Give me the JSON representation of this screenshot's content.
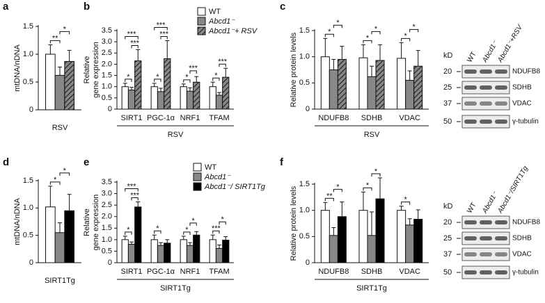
{
  "chart_data": [
    {
      "panel": "a",
      "type": "bar",
      "ylabel": [
        "mtDNA/nDNA"
      ],
      "xlabel": "RSV",
      "categories": [
        null
      ],
      "legend": false,
      "series": [
        {
          "name": "WT",
          "color": "#ffffff",
          "values": [
            1.0
          ],
          "errors": [
            0.17
          ]
        },
        {
          "name": "Abcd1⁻",
          "color": "#888888",
          "values": [
            0.62
          ],
          "errors": [
            0.15
          ]
        },
        {
          "name": "Abcd1⁻+ RSV",
          "color": "#888888",
          "hatch": true,
          "values": [
            0.87
          ],
          "errors": [
            0.2
          ]
        }
      ],
      "ylim": [
        0,
        1.5
      ],
      "yticks": [
        0,
        0.5,
        {
          "value": 1,
          "label": "1.0"
        },
        1.5
      ],
      "comparisons": [
        {
          "text": "**",
          "category": 0,
          "from": 0,
          "to": 1
        },
        {
          "text": "*",
          "category": 0,
          "from": 1,
          "to": 2
        }
      ]
    },
    {
      "panel": "b",
      "type": "bar",
      "ylabel": [
        "Relative",
        "gene expression"
      ],
      "xlabel": "RSV",
      "categories": [
        "SIRT1",
        "PGC-1α",
        "NRF1",
        "TFAM"
      ],
      "legend": true,
      "series": [
        {
          "name": "WT",
          "color": "#ffffff",
          "values": [
            1,
            1,
            1,
            1
          ],
          "errors": [
            0.15,
            0.15,
            0.12,
            0.2
          ]
        },
        {
          "name": "Abcd1⁻",
          "color": "#888888",
          "values": [
            0.85,
            0.78,
            0.8,
            0.62
          ],
          "errors": [
            0.12,
            0.15,
            0.15,
            0.12
          ]
        },
        {
          "name": "Abcd1⁻+ RSV",
          "color": "#888888",
          "hatch": true,
          "values": [
            2.15,
            2.25,
            1.2,
            1.42
          ],
          "errors": [
            0.5,
            0.8,
            0.25,
            0.4
          ]
        }
      ],
      "ylim": [
        0,
        3.5
      ],
      "yticks": [
        0,
        0.5,
        {
          "value": 1,
          "label": "1.0"
        },
        1.5,
        {
          "value": 2,
          "label": "2.0"
        },
        2.5,
        {
          "value": 3,
          "label": "3.0"
        },
        3.5
      ],
      "comparisons": [
        {
          "text": "*",
          "category": 0,
          "from": 0,
          "to": 1
        },
        {
          "text": "***",
          "category": 0,
          "from": 1,
          "to": 2
        },
        {
          "text": "***",
          "category": 0,
          "from": 0,
          "to": 2
        },
        {
          "text": "*",
          "category": 1,
          "from": 0,
          "to": 1
        },
        {
          "text": "***",
          "category": 1,
          "from": 1,
          "to": 2
        },
        {
          "text": "***",
          "category": 1,
          "from": 0,
          "to": 2
        },
        {
          "text": "*",
          "category": 2,
          "from": 0,
          "to": 1
        },
        {
          "text": "***",
          "category": 2,
          "from": 1,
          "to": 2
        },
        {
          "text": "*",
          "category": 3,
          "from": 0,
          "to": 1
        },
        {
          "text": "***",
          "category": 3,
          "from": 1,
          "to": 2
        }
      ]
    },
    {
      "panel": "c",
      "type": "bar",
      "ylabel": [
        "Relative protein levels"
      ],
      "xlabel": "RSV",
      "categories": [
        "NDUFB8",
        "SDHB",
        "VDAC"
      ],
      "legend": false,
      "series": [
        {
          "name": "WT",
          "color": "#ffffff",
          "values": [
            1.0,
            0.98,
            0.97
          ],
          "errors": [
            0.35,
            0.25,
            0.3
          ]
        },
        {
          "name": "Abcd1⁻",
          "color": "#888888",
          "values": [
            0.75,
            0.62,
            0.55
          ],
          "errors": [
            0.2,
            0.2,
            0.18
          ]
        },
        {
          "name": "Abcd1⁻+ RSV",
          "color": "#888888",
          "hatch": true,
          "values": [
            0.95,
            0.93,
            0.82
          ],
          "errors": [
            0.25,
            0.3,
            0.3
          ]
        }
      ],
      "ylim": [
        0,
        1.5
      ],
      "yticks": [
        0,
        0.5,
        {
          "value": 1,
          "label": "1.0"
        },
        1.5
      ],
      "comparisons": [
        {
          "text": "*",
          "category": 0,
          "from": 0,
          "to": 1
        },
        {
          "text": "*",
          "category": 0,
          "from": 1,
          "to": 2
        },
        {
          "text": "*",
          "category": 1,
          "from": 0,
          "to": 1
        },
        {
          "text": "*",
          "category": 1,
          "from": 1,
          "to": 2
        },
        {
          "text": "*",
          "category": 2,
          "from": 0,
          "to": 1
        },
        {
          "text": "*",
          "category": 2,
          "from": 1,
          "to": 2
        }
      ]
    },
    {
      "panel": "d",
      "type": "bar",
      "ylabel": [
        "mtDNA/nDNA"
      ],
      "xlabel": "SIRT1Tg",
      "categories": [
        null
      ],
      "legend": false,
      "series": [
        {
          "name": "WT",
          "color": "#ffffff",
          "values": [
            1.02
          ],
          "errors": [
            0.38
          ]
        },
        {
          "name": "Abcd1⁻",
          "color": "#888888",
          "values": [
            0.55
          ],
          "errors": [
            0.18
          ]
        },
        {
          "name": "Abcd1⁻/ SIRT1Tg",
          "color": "#000000",
          "values": [
            0.95
          ],
          "errors": [
            0.3
          ]
        }
      ],
      "ylim": [
        0,
        1.5
      ],
      "yticks": [
        0,
        0.5,
        {
          "value": 1,
          "label": "1.0"
        },
        1.5
      ],
      "comparisons": [
        {
          "text": "*",
          "category": 0,
          "from": 0,
          "to": 1
        },
        {
          "text": "*",
          "category": 0,
          "from": 1,
          "to": 2
        }
      ]
    },
    {
      "panel": "e",
      "type": "bar",
      "ylabel": [
        "Relative",
        "gene expression"
      ],
      "xlabel": "SIRT1Tg",
      "categories": [
        "SIRT1",
        "PGC-1α",
        "NRF1",
        "TFAM"
      ],
      "legend": true,
      "series": [
        {
          "name": "WT",
          "color": "#ffffff",
          "values": [
            1,
            1,
            1,
            1
          ],
          "errors": [
            0.15,
            0.2,
            0.15,
            0.2
          ]
        },
        {
          "name": "Abcd1⁻",
          "color": "#888888",
          "values": [
            0.8,
            0.75,
            0.75,
            0.62
          ],
          "errors": [
            0.1,
            0.12,
            0.12,
            0.15
          ]
        },
        {
          "name": "Abcd1⁻/ SIRT1Tg",
          "color": "#000000",
          "values": [
            2.42,
            0.85,
            1.2,
            0.98
          ],
          "errors": [
            0.22,
            0.15,
            0.15,
            0.15
          ]
        }
      ],
      "ylim": [
        0,
        3.5
      ],
      "yticks": [
        0,
        0.5,
        {
          "value": 1,
          "label": "1.0"
        },
        1.5,
        {
          "value": 2,
          "label": "2.0"
        },
        2.5,
        {
          "value": 3,
          "label": "3.0"
        },
        3.5
      ],
      "comparisons": [
        {
          "text": "*",
          "category": 0,
          "from": 0,
          "to": 1
        },
        {
          "text": "***",
          "category": 0,
          "from": 1,
          "to": 2
        },
        {
          "text": "***",
          "category": 0,
          "from": 0,
          "to": 2
        },
        {
          "text": "*",
          "category": 1,
          "from": 0,
          "to": 1
        },
        {
          "text": "*",
          "category": 2,
          "from": 0,
          "to": 1
        },
        {
          "text": "*",
          "category": 2,
          "from": 1,
          "to": 2
        },
        {
          "text": "***",
          "category": 3,
          "from": 0,
          "to": 1
        },
        {
          "text": "*",
          "category": 3,
          "from": 1,
          "to": 2
        }
      ]
    },
    {
      "panel": "f",
      "type": "bar",
      "ylabel": [
        "Relative protein levels"
      ],
      "xlabel": "SIRT1Tg",
      "categories": [
        "NDUFB8",
        "SDHB",
        "VDAC"
      ],
      "legend": false,
      "series": [
        {
          "name": "WT",
          "color": "#ffffff",
          "values": [
            1.0,
            1.0,
            1.0
          ],
          "errors": [
            0.15,
            0.35,
            0.08
          ]
        },
        {
          "name": "Abcd1⁻",
          "color": "#888888",
          "values": [
            0.52,
            0.52,
            0.72
          ],
          "errors": [
            0.15,
            0.45,
            0.12
          ]
        },
        {
          "name": "Abcd1⁻/ SIRT1Tg",
          "color": "#000000",
          "values": [
            0.88,
            1.22,
            0.83
          ],
          "errors": [
            0.28,
            0.4,
            0.18
          ]
        }
      ],
      "ylim": [
        0,
        1.5
      ],
      "yticks": [
        0,
        0.5,
        {
          "value": 1,
          "label": "1.0"
        },
        1.5
      ],
      "comparisons": [
        {
          "text": "**",
          "category": 0,
          "from": 0,
          "to": 1
        },
        {
          "text": "*",
          "category": 0,
          "from": 1,
          "to": 2
        },
        {
          "text": "*",
          "category": 1,
          "from": 0,
          "to": 1
        },
        {
          "text": "*",
          "category": 1,
          "from": 1,
          "to": 2
        },
        {
          "text": "*",
          "category": 2,
          "from": 0,
          "to": 1
        }
      ]
    }
  ],
  "blots": [
    {
      "lanes": [
        "WT",
        "Abcd1⁻",
        "Abcd1⁻+RSV"
      ],
      "unit": "kD",
      "markers": [
        20,
        25,
        37,
        50
      ],
      "proteins": [
        "NDUFB8",
        "SDHB",
        "VDAC",
        "γ-tubulin"
      ]
    },
    {
      "lanes": [
        "WT",
        "Abcd1⁻",
        "Abcd1⁻/SIRT1Tg"
      ],
      "unit": "kD",
      "markers": [
        20,
        25,
        37,
        50
      ],
      "proteins": [
        "NDUFB8",
        "SDHB",
        "VDAC",
        "γ-tubulin"
      ]
    }
  ]
}
